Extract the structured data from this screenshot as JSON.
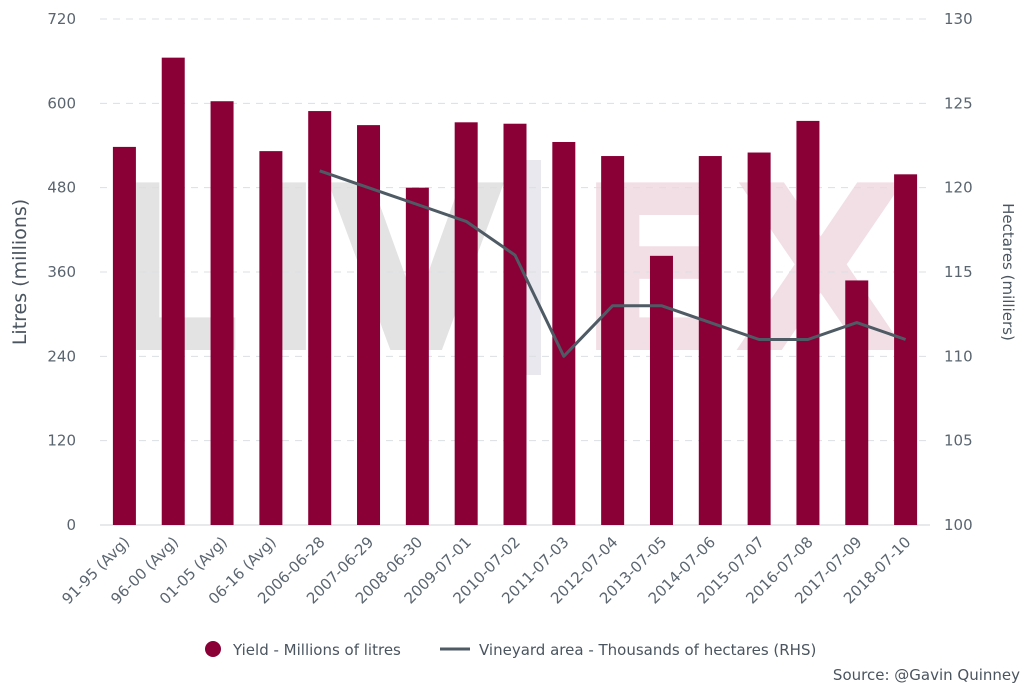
{
  "chart_data": {
    "type": "bar",
    "categories": [
      "91-95 (Avg)",
      "96-00 (Avg)",
      "01-05 (Avg)",
      "06-16 (Avg)",
      "2006-06-28",
      "2007-06-29",
      "2008-06-30",
      "2009-07-01",
      "2010-07-02",
      "2011-07-03",
      "2012-07-04",
      "2013-07-05",
      "2014-07-06",
      "2015-07-07",
      "2016-07-08",
      "2017-07-09",
      "2018-07-10"
    ],
    "series": [
      {
        "name": "Yield - Millions of litres",
        "type": "bar",
        "axis": "left",
        "color": "#8a0036",
        "values": [
          538,
          665,
          603,
          532,
          589,
          569,
          480,
          573,
          571,
          545,
          525,
          383,
          525,
          530,
          575,
          348,
          499
        ]
      },
      {
        "name": "Vineyard area - Thousands of hectares (RHS)",
        "type": "line",
        "axis": "right",
        "color": "#4e5a64",
        "values": [
          null,
          null,
          null,
          null,
          121,
          120,
          119,
          118,
          116,
          110,
          113,
          113,
          112,
          111,
          111,
          112,
          111
        ]
      }
    ],
    "ylabel": "Litres (millions)",
    "ylabel_right": "Hectares (milliers)",
    "ylim": [
      0,
      720
    ],
    "yticks": [
      "0",
      "120",
      "240",
      "360",
      "480",
      "600",
      "720"
    ],
    "ylim_right": [
      100,
      130
    ],
    "yticks_right": [
      "100",
      "105",
      "110",
      "115",
      "120",
      "125",
      "130"
    ],
    "grid": true,
    "legend_position": "bottom"
  },
  "source": "Source: @Gavin Quinney",
  "watermark": "LIV-EX"
}
